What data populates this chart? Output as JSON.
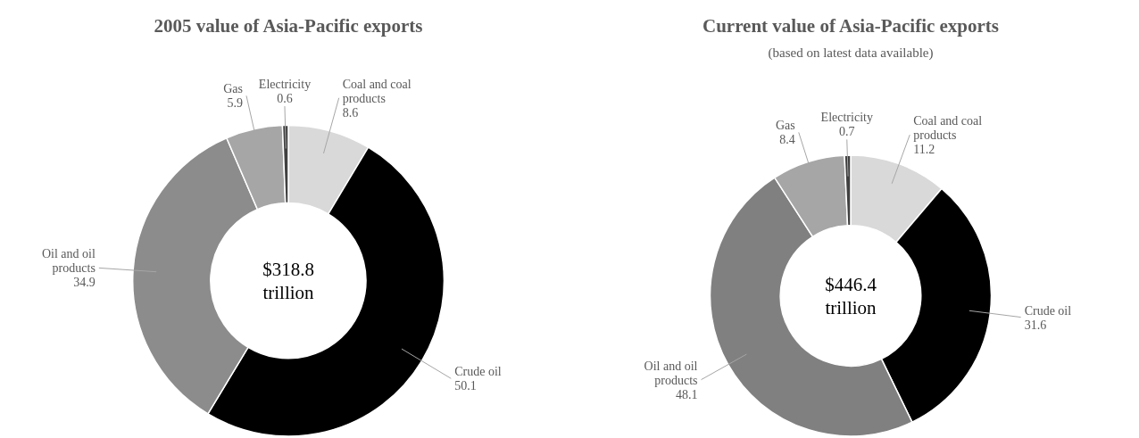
{
  "chart_data": [
    {
      "type": "donut",
      "title": "2005 value of Asia-Pacific exports",
      "categories": [
        "Coal and coal products",
        "Crude oil",
        "Oil and oil products",
        "Gas",
        "Electricity"
      ],
      "values": [
        8.6,
        50.1,
        34.9,
        5.9,
        0.6
      ],
      "colors": [
        "#d9d9d9",
        "#000000",
        "#8c8c8c",
        "#a6a6a6",
        "#404040"
      ],
      "data_labels": true,
      "annotations": [
        "$318.8 trillion"
      ]
    },
    {
      "type": "donut",
      "title": "Current value of Asia-Pacific exports",
      "subtitle": "(based on latest data available)",
      "categories": [
        "Coal and coal products",
        "Crude oil",
        "Oil and oil products",
        "Gas",
        "Electricity"
      ],
      "values": [
        11.2,
        31.6,
        48.1,
        8.4,
        0.7
      ],
      "colors": [
        "#d9d9d9",
        "#000000",
        "#808080",
        "#a6a6a6",
        "#404040"
      ],
      "data_labels": true,
      "annotations": [
        "$446.4 trillion"
      ]
    }
  ]
}
